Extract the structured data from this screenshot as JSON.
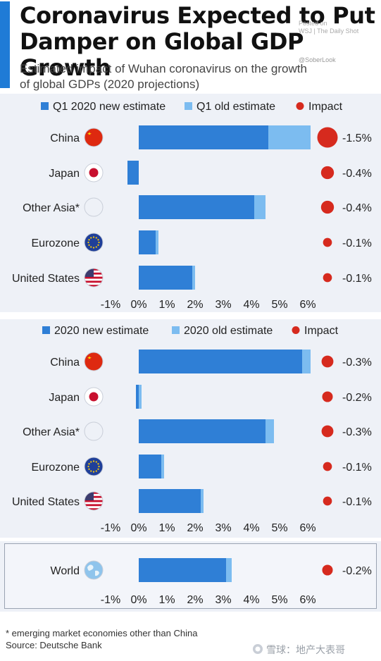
{
  "header": {
    "title": "Coronavirus Expected to Put\nDamper on Global GDP Growth",
    "subtitle": "Estimated impact of Wuhan coronavirus on the growth\nof global GDPs (2020 projections)",
    "posted_on": "Posted on\nWSJ | The Daily Shot",
    "handle": "@SoberLook",
    "accent_color": "#1f7bd6"
  },
  "footer": {
    "footnote": "* emerging market economies other than China",
    "source": "Source: Deutsche Bank",
    "watermark": "雪球：地产大表哥",
    "watermark_icon": "snowball-icon"
  },
  "chart_data": [
    {
      "type": "bar",
      "orientation": "horizontal",
      "legend": [
        "Q1 2020 new estimate",
        "Q1 old estimate",
        "Impact"
      ],
      "legend_placement": "top",
      "categories": [
        "China",
        "Japan",
        "Other Asia*",
        "Eurozone",
        "United States"
      ],
      "flags": [
        "china-flag-icon",
        "japan-flag-icon",
        "other-asia-flag-icon",
        "eu-flag-icon",
        "us-flag-icon"
      ],
      "series": [
        {
          "name": "Q1 2020 new estimate",
          "values": [
            4.6,
            -0.4,
            4.1,
            0.6,
            1.9
          ],
          "color": "#2f7fd6"
        },
        {
          "name": "Q1 old estimate",
          "values": [
            6.1,
            0,
            4.5,
            0.7,
            2.0
          ],
          "color": "#7cbcf0"
        }
      ],
      "impact": {
        "name": "Impact",
        "values": [
          -1.5,
          -0.4,
          -0.4,
          -0.1,
          -0.1
        ],
        "labels": [
          "-1.5%",
          "-0.4%",
          "-0.4%",
          "-0.1%",
          "-0.1%"
        ],
        "color": "#d62a1e"
      },
      "xlim": [
        -1,
        6
      ],
      "xticks": [
        "-1%",
        "0%",
        "1%",
        "2%",
        "3%",
        "4%",
        "5%",
        "6%"
      ],
      "grid": false
    },
    {
      "type": "bar",
      "orientation": "horizontal",
      "legend": [
        "2020 new estimate",
        "2020 old estimate",
        "Impact"
      ],
      "legend_placement": "top",
      "categories": [
        "China",
        "Japan",
        "Other Asia*",
        "Eurozone",
        "United States"
      ],
      "flags": [
        "china-flag-icon",
        "japan-flag-icon",
        "other-asia-flag-icon",
        "eu-flag-icon",
        "us-flag-icon"
      ],
      "series": [
        {
          "name": "2020 new estimate",
          "values": [
            5.8,
            -0.1,
            4.5,
            0.8,
            2.2
          ],
          "color": "#2f7fd6"
        },
        {
          "name": "2020 old estimate",
          "values": [
            6.1,
            0.1,
            4.8,
            0.9,
            2.3
          ],
          "color": "#7cbcf0"
        }
      ],
      "impact": {
        "name": "Impact",
        "values": [
          -0.3,
          -0.2,
          -0.3,
          -0.1,
          -0.1
        ],
        "labels": [
          "-0.3%",
          "-0.2%",
          "-0.3%",
          "-0.1%",
          "-0.1%"
        ],
        "color": "#d62a1e"
      },
      "xlim": [
        -1,
        6
      ],
      "xticks": [
        "-1%",
        "0%",
        "1%",
        "2%",
        "3%",
        "4%",
        "5%",
        "6%"
      ],
      "grid": false
    },
    {
      "type": "bar",
      "orientation": "horizontal",
      "categories": [
        "World"
      ],
      "flags": [
        "globe-icon"
      ],
      "series": [
        {
          "name": "2020 new estimate",
          "values": [
            3.1
          ],
          "color": "#2f7fd6"
        },
        {
          "name": "2020 old estimate",
          "values": [
            3.3
          ],
          "color": "#7cbcf0"
        }
      ],
      "impact": {
        "name": "Impact",
        "values": [
          -0.2
        ],
        "labels": [
          "-0.2%"
        ],
        "color": "#d62a1e"
      },
      "xlim": [
        -1,
        6
      ],
      "xticks": [
        "-1%",
        "0%",
        "1%",
        "2%",
        "3%",
        "4%",
        "5%",
        "6%"
      ],
      "grid": false
    }
  ]
}
